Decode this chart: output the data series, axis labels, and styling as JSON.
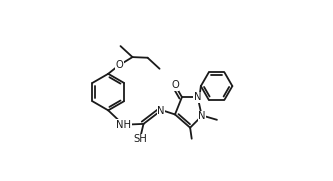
{
  "bg": "#ffffff",
  "lc": "#1a1a1a",
  "lw": 1.3,
  "fs": 7.2,
  "figsize": [
    3.33,
    1.81
  ],
  "dpi": 100,
  "xlim": [
    0.0,
    10.0
  ],
  "ylim": [
    0.5,
    6.2
  ]
}
